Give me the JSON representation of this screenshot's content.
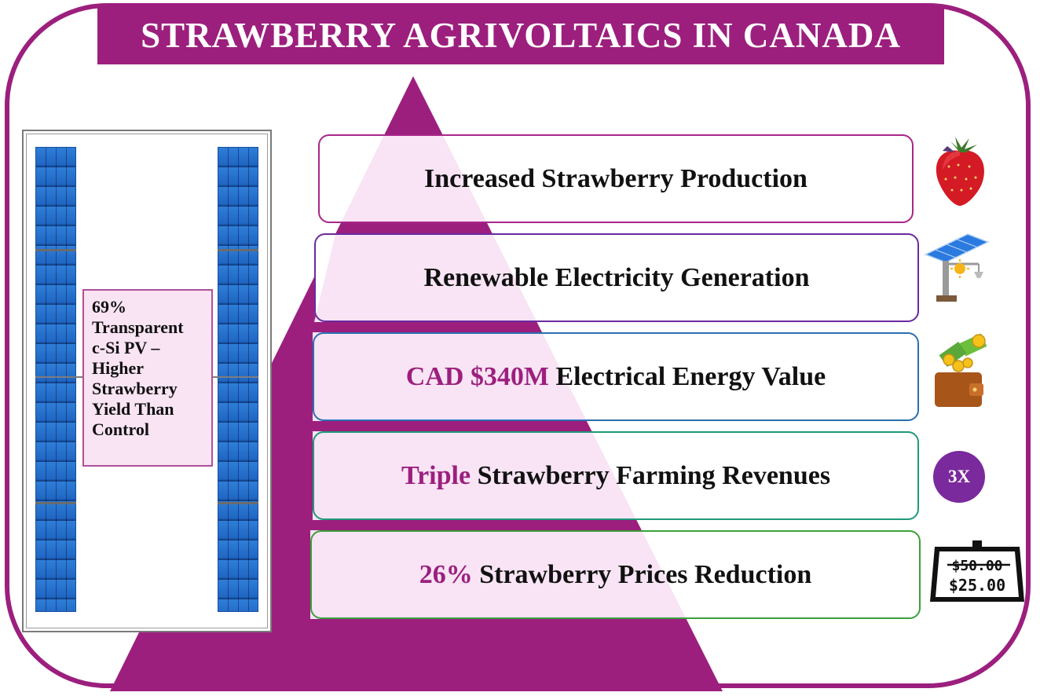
{
  "title": "STRAWBERRY AGRIVOLTAICS IN CANADA",
  "colors": {
    "brand": "#9c1f7e",
    "pyramid_light": "#f8e4f4",
    "highlight": "#9c1f7e"
  },
  "pv_label": "69%\nTransparent\nc-Si PV –\nHigher\nStrawberry\nYield Than\nControl",
  "benefits": [
    {
      "highlight": "",
      "text": "Increased Strawberry Production",
      "border": "#a8268a",
      "icon": "strawberry-icon"
    },
    {
      "highlight": "",
      "text": "Renewable Electricity Generation",
      "border": "#6a2aa0",
      "icon": "solar-panel-icon"
    },
    {
      "highlight": "CAD $340M",
      "text": " Electrical Energy Value",
      "border": "#2a6fb0",
      "icon": "wallet-money-icon"
    },
    {
      "highlight": "Triple",
      "text": " Strawberry Farming Revenues",
      "border": "#1f9a7a",
      "icon": "triple-badge-icon"
    },
    {
      "highlight": "26%",
      "text": " Strawberry Prices Reduction",
      "border": "#3aa03a",
      "icon": "price-tag-icon"
    }
  ],
  "badge_text": "3X",
  "price_tag": {
    "old": "$50.00",
    "new": "$25.00"
  }
}
